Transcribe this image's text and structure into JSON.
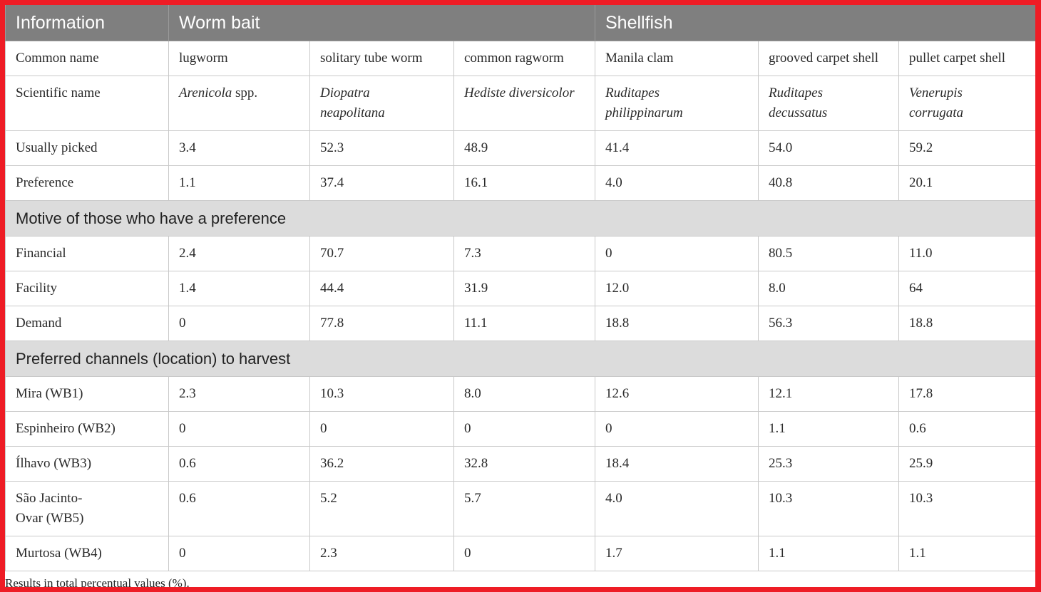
{
  "header": {
    "col0": "Information",
    "group1": "Worm bait",
    "group2": "Shellfish"
  },
  "rows": {
    "common_name": {
      "label": "Common name",
      "values": [
        "lugworm",
        "solitary tube worm",
        "common ragworm",
        "Manila clam",
        "grooved carpet shell",
        "pullet carpet shell"
      ]
    },
    "scientific_name": {
      "label": "Scientific name",
      "v1_italic": "Arenicola",
      "v1_plain": " spp.",
      "v2_line1": "Diopatra",
      "v2_line2": "neapolitana",
      "v3": "Hediste diversicolor",
      "v4_line1": "Ruditapes",
      "v4_line2": "philippinarum",
      "v5_line1": "Ruditapes",
      "v5_line2": "decussatus",
      "v6_line1": "Venerupis",
      "v6_line2": "corrugata"
    },
    "usually_picked": {
      "label": "Usually picked",
      "values": [
        "3.4",
        "52.3",
        "48.9",
        "41.4",
        "54.0",
        "59.2"
      ]
    },
    "preference": {
      "label": "Preference",
      "values": [
        "1.1",
        "37.4",
        "16.1",
        "4.0",
        "40.8",
        "20.1"
      ]
    }
  },
  "section_motive": {
    "title": "Motive of those who have a preference"
  },
  "motive_rows": [
    {
      "label": "Financial",
      "values": [
        "2.4",
        "70.7",
        "7.3",
        "0",
        "80.5",
        "11.0"
      ]
    },
    {
      "label": "Facility",
      "values": [
        "1.4",
        "44.4",
        "31.9",
        "12.0",
        "8.0",
        "64"
      ]
    },
    {
      "label": "Demand",
      "values": [
        "0",
        "77.8",
        "11.1",
        "18.8",
        "56.3",
        "18.8"
      ]
    }
  ],
  "section_channels": {
    "title": "Preferred channels (location) to harvest"
  },
  "channel_rows": [
    {
      "label": "Mira (WB1)",
      "values": [
        "2.3",
        "10.3",
        "8.0",
        "12.6",
        "12.1",
        "17.8"
      ]
    },
    {
      "label": "Espinheiro (WB2)",
      "values": [
        "0",
        "0",
        "0",
        "0",
        "1.1",
        "0.6"
      ]
    },
    {
      "label": "Ílhavo (WB3)",
      "values": [
        "0.6",
        "36.2",
        "32.8",
        "18.4",
        "25.3",
        "25.9"
      ]
    },
    {
      "label_line1": "São Jacinto-",
      "label_line2": "Ovar (WB5)",
      "values": [
        "0.6",
        "5.2",
        "5.7",
        "4.0",
        "10.3",
        "10.3"
      ]
    },
    {
      "label": "Murtosa (WB4)",
      "values": [
        "0",
        "2.3",
        "0",
        "1.7",
        "1.1",
        "1.1"
      ]
    }
  ],
  "footnote": "Results in total percentual values (%).",
  "colors": {
    "frame": "#ee1c25",
    "header_bg": "#7f7f7f",
    "section_bg": "#dcdcdc"
  }
}
